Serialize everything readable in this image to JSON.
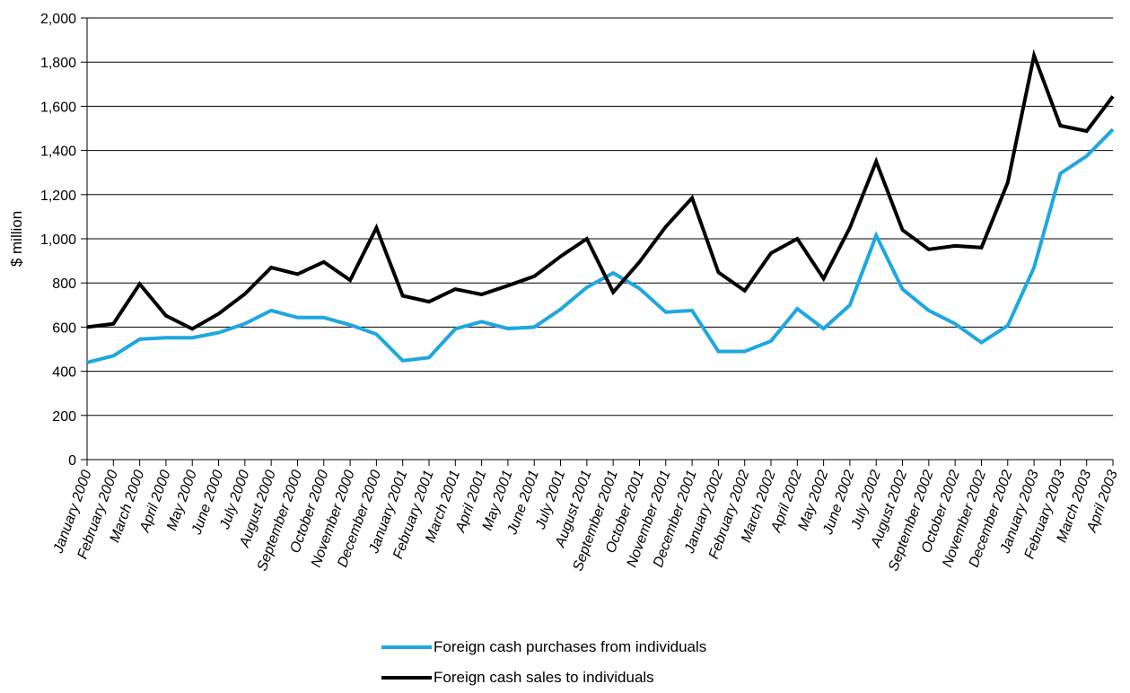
{
  "chart_data": {
    "type": "line",
    "title": "",
    "xlabel": "",
    "ylabel": "$ million",
    "ylim": [
      0,
      2000
    ],
    "yticks": [
      "0",
      "200",
      "400",
      "600",
      "800",
      "1,000",
      "1,200",
      "1,400",
      "1,600",
      "1,800",
      "2,000"
    ],
    "grid": true,
    "legend_position": "bottom",
    "categories": [
      "January 2000",
      "February 2000",
      "March 2000",
      "April 2000",
      "May 2000",
      "June 2000",
      "July 2000",
      "August 2000",
      "September 2000",
      "October 2000",
      "November 2000",
      "December 2000",
      "January 2001",
      "February 2001",
      "March 2001",
      "April 2001",
      "May 2001",
      "June 2001",
      "July 2001",
      "August 2001",
      "September 2001",
      "October 2001",
      "November 2001",
      "December 2001",
      "January 2002",
      "February 2002",
      "March 2002",
      "April 2002",
      "May 2002",
      "June 2002",
      "July 2002",
      "August 2002",
      "September 2002",
      "October 2002",
      "November 2002",
      "December 2002",
      "January 2003",
      "February 2003",
      "March 2003",
      "April 2003"
    ],
    "series": [
      {
        "name": "Foreign cash purchases from individuals",
        "color": "#1ea7e1",
        "values": [
          440,
          470,
          545,
          552,
          552,
          575,
          615,
          675,
          643,
          643,
          610,
          568,
          448,
          462,
          592,
          625,
          593,
          600,
          680,
          780,
          845,
          775,
          668,
          675,
          490,
          490,
          537,
          683,
          593,
          700,
          1015,
          772,
          675,
          615,
          530,
          607,
          870,
          1295,
          1375,
          1495
        ]
      },
      {
        "name": "Foreign cash sales to individuals",
        "color": "#000000",
        "values": [
          600,
          615,
          795,
          652,
          592,
          660,
          750,
          870,
          840,
          895,
          812,
          1050,
          742,
          715,
          772,
          748,
          788,
          830,
          920,
          1000,
          758,
          895,
          1055,
          1185,
          848,
          765,
          935,
          1000,
          820,
          1050,
          1350,
          1040,
          952,
          968,
          960,
          1255,
          1830,
          1512,
          1488,
          1645
        ]
      }
    ]
  }
}
